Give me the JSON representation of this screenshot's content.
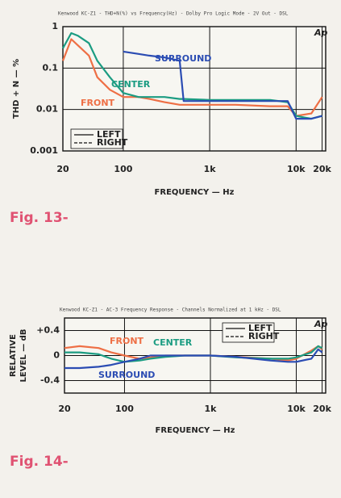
{
  "chart_data": [
    {
      "type": "line",
      "title": "Kenwood KC-Z1 - THD+N(%) vs Frequency(Hz) - Dolby Pro Logic Mode - 2V Out - DSL",
      "caption": "Fig. 13-",
      "logo": "Ap",
      "xlabel": "FREQUENCY — Hz",
      "ylabel": [
        "THD + N — %"
      ],
      "xscale": "log",
      "yscale": "log",
      "grid": true,
      "xlim": [
        20,
        22000
      ],
      "ylim": [
        0.001,
        1
      ],
      "xticks": [
        20,
        100,
        {
          "value": 1000,
          "label": "1k"
        },
        {
          "value": 10000,
          "label": "10k"
        },
        {
          "value": 20000,
          "label": "20k"
        }
      ],
      "yticks": [
        1,
        0.1,
        0.01,
        0.001
      ],
      "x": [
        20,
        25,
        30,
        40,
        50,
        70,
        100,
        150,
        200,
        300,
        450,
        500,
        1000,
        2000,
        5000,
        8000,
        10000,
        15000,
        20000
      ],
      "series": [
        {
          "name": "FRONT",
          "color": "#ee6f45",
          "values": [
            0.15,
            0.5,
            0.35,
            0.2,
            0.06,
            0.03,
            0.02,
            0.02,
            0.018,
            0.015,
            0.013,
            0.013,
            0.013,
            0.013,
            0.012,
            0.012,
            0.007,
            0.008,
            0.02
          ]
        },
        {
          "name": "CENTER",
          "color": "#1b9c82",
          "values": [
            0.3,
            0.7,
            0.6,
            0.4,
            0.15,
            0.06,
            0.025,
            0.02,
            0.02,
            0.02,
            0.018,
            0.018,
            0.017,
            0.017,
            0.017,
            0.015,
            0.007,
            0.006,
            0.007
          ]
        },
        {
          "name": "SURROUND",
          "color": "#2b4cb3",
          "values": [
            null,
            null,
            null,
            null,
            null,
            null,
            0.25,
            0.22,
            0.2,
            0.18,
            0.15,
            0.016,
            0.016,
            0.016,
            0.016,
            0.016,
            0.006,
            0.006,
            0.007
          ]
        }
      ],
      "legend_styles": [
        {
          "label": "LEFT",
          "dash": "solid"
        },
        {
          "label": "RIGHT",
          "dash": "dashed"
        }
      ]
    },
    {
      "type": "line",
      "title": "Kenwood KC-Z1 - AC-3 Frequency Response - Channels Normalized at 1 kHz - DSL",
      "caption": "Fig. 14-",
      "logo": "Ap",
      "xlabel": "FREQUENCY — Hz",
      "ylabel": [
        "RELATIVE",
        "LEVEL — dB"
      ],
      "xscale": "log",
      "yscale": "linear",
      "grid": true,
      "xlim": [
        20,
        22000
      ],
      "ylim": [
        -0.6,
        0.6
      ],
      "xticks": [
        20,
        100,
        {
          "value": 1000,
          "label": "1k"
        },
        {
          "value": 10000,
          "label": "10k"
        },
        {
          "value": 20000,
          "label": "20k"
        }
      ],
      "yticks": [
        {
          "value": 0.4,
          "label": "+0.4"
        },
        0,
        -0.4
      ],
      "x": [
        20,
        30,
        50,
        70,
        100,
        150,
        200,
        300,
        500,
        1000,
        2000,
        5000,
        8000,
        10000,
        15000,
        18000,
        20000
      ],
      "series": [
        {
          "name": "FRONT",
          "color": "#ee6f45",
          "values": [
            0.12,
            0.15,
            0.12,
            0.05,
            0.0,
            -0.05,
            -0.03,
            0.0,
            0.0,
            0.0,
            -0.02,
            -0.05,
            -0.08,
            -0.05,
            0.08,
            0.15,
            0.1
          ]
        },
        {
          "name": "CENTER",
          "color": "#1b9c82",
          "values": [
            0.05,
            0.05,
            0.02,
            -0.05,
            -0.1,
            -0.08,
            -0.05,
            -0.02,
            0.0,
            0.0,
            -0.03,
            -0.05,
            -0.05,
            -0.03,
            0.05,
            0.15,
            0.12
          ]
        },
        {
          "name": "SURROUND",
          "color": "#2b4cb3",
          "values": [
            -0.2,
            -0.2,
            -0.18,
            -0.15,
            -0.1,
            -0.05,
            0.0,
            0.0,
            0.0,
            0.0,
            -0.02,
            -0.08,
            -0.1,
            -0.1,
            -0.05,
            0.1,
            0.05
          ]
        }
      ],
      "legend_styles": [
        {
          "label": "LEFT",
          "dash": "solid"
        },
        {
          "label": "RIGHT",
          "dash": "dashed"
        }
      ]
    }
  ]
}
